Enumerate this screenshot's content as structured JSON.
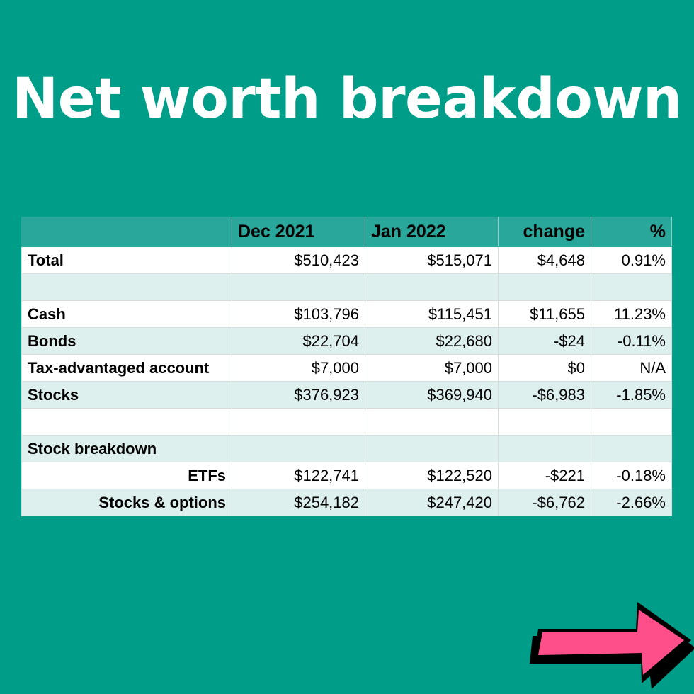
{
  "title": "Net worth breakdown",
  "table": {
    "headers": [
      "",
      "Dec 2021",
      "Jan 2022",
      "change",
      "%"
    ],
    "rows": [
      {
        "label": "Total",
        "dec": "$510,423",
        "jan": "$515,071",
        "change": "$4,648",
        "pct": "0.91%",
        "indent": false
      },
      {
        "label": "",
        "dec": "",
        "jan": "",
        "change": "",
        "pct": "",
        "indent": false
      },
      {
        "label": "Cash",
        "dec": "$103,796",
        "jan": "$115,451",
        "change": "$11,655",
        "pct": "11.23%",
        "indent": false
      },
      {
        "label": "Bonds",
        "dec": "$22,704",
        "jan": "$22,680",
        "change": "-$24",
        "pct": "-0.11%",
        "indent": false
      },
      {
        "label": "Tax-advantaged account",
        "dec": "$7,000",
        "jan": "$7,000",
        "change": "$0",
        "pct": "N/A",
        "indent": false
      },
      {
        "label": "Stocks",
        "dec": "$376,923",
        "jan": "$369,940",
        "change": "-$6,983",
        "pct": "-1.85%",
        "indent": false
      },
      {
        "label": "",
        "dec": "",
        "jan": "",
        "change": "",
        "pct": "",
        "indent": false
      },
      {
        "label": "Stock breakdown",
        "dec": "",
        "jan": "",
        "change": "",
        "pct": "",
        "indent": false
      },
      {
        "label": "ETFs",
        "dec": "$122,741",
        "jan": "$122,520",
        "change": "-$221",
        "pct": "-0.18%",
        "indent": true
      },
      {
        "label": "Stocks & options",
        "dec": "$254,182",
        "jan": "$247,420",
        "change": "-$6,762",
        "pct": "-2.66%",
        "indent": true
      }
    ]
  },
  "colors": {
    "background": "#009e89",
    "header_fill": "#2aa79b",
    "stripe": "#ddf0ee",
    "arrow": "#ff4f8b"
  },
  "icons": {
    "next": "arrow-right-icon"
  }
}
